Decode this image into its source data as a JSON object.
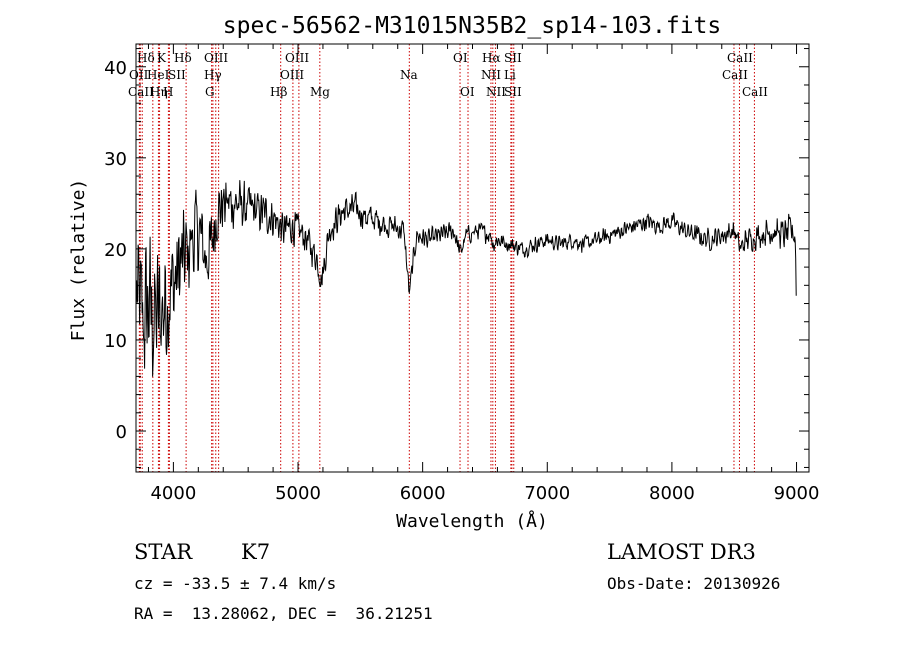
{
  "chart_data": {
    "type": "line",
    "title": "spec-56562-M31015N35B2_sp14-103.fits",
    "xlabel": "Wavelength (Å)",
    "ylabel": "Flux (relative)",
    "xlim": [
      3700,
      9100
    ],
    "ylim": [
      -4.5,
      42.5
    ],
    "xticks": [
      4000,
      5000,
      6000,
      7000,
      8000,
      9000
    ],
    "yticks": [
      0,
      10,
      20,
      30,
      40
    ],
    "grid": false,
    "line_color": "#000000",
    "marker_color": "#cc0000",
    "spectrum_anchors": {
      "x": [
        3705,
        3760,
        3800,
        3850,
        3900,
        3950,
        4000,
        4050,
        4100,
        4150,
        4200,
        4260,
        4300,
        4350,
        4400,
        4500,
        4600,
        4700,
        4800,
        4880,
        4950,
        5050,
        5150,
        5190,
        5250,
        5350,
        5450,
        5550,
        5650,
        5750,
        5850,
        5893,
        5950,
        6050,
        6150,
        6250,
        6300,
        6350,
        6450,
        6550,
        6563,
        6600,
        6700,
        6800,
        6900,
        7000,
        7100,
        7200,
        7300,
        7400,
        7500,
        7600,
        7700,
        7800,
        7900,
        8000,
        8100,
        8200,
        8300,
        8400,
        8500,
        8550,
        8600,
        8700,
        8800,
        8900,
        8960,
        8990,
        9000
      ],
      "y": [
        15,
        12,
        14,
        12,
        13,
        15,
        16,
        18,
        19,
        21,
        22,
        19,
        20,
        24,
        25,
        25,
        24.5,
        24,
        23.5,
        22,
        22.5,
        21.5,
        19,
        16.5,
        22,
        24,
        24.5,
        23.5,
        23,
        22.5,
        22,
        15,
        21.5,
        21,
        21.5,
        22,
        19.5,
        21.5,
        22,
        21.5,
        20.5,
        21,
        20.5,
        20,
        20.5,
        21,
        20.5,
        21,
        20.5,
        21,
        21.5,
        22,
        22.5,
        23,
        22.5,
        23,
        22,
        21.5,
        21,
        21.5,
        22,
        20,
        21,
        21.5,
        22,
        21.5,
        22,
        21.5,
        13
      ],
      "noise": [
        9,
        10,
        10,
        10,
        10,
        9,
        8,
        7,
        7,
        6,
        6,
        5,
        5,
        4,
        4,
        3.2,
        3,
        2.8,
        2.6,
        2.4,
        2.4,
        2.2,
        2,
        2,
        2,
        2,
        2,
        1.9,
        1.8,
        1.8,
        1.6,
        1.5,
        1.5,
        1.4,
        1.4,
        1.3,
        1.3,
        1.2,
        1.2,
        1.2,
        1.2,
        1.2,
        1.1,
        1.1,
        1.1,
        1.1,
        1.1,
        1.1,
        1.1,
        1.1,
        1.1,
        1.1,
        1.2,
        1.2,
        1.2,
        1.2,
        1.3,
        1.3,
        1.4,
        1.4,
        1.5,
        1.5,
        1.6,
        1.7,
        1.8,
        2,
        2.2,
        2.4,
        2.5
      ],
      "step": 4
    },
    "line_markers": [
      {
        "label": "Hδ",
        "x": 3750
      },
      {
        "label": "OII",
        "x": 3727
      },
      {
        "label": "CaII",
        "x": 3734
      },
      {
        "label": "K",
        "x": 3880
      },
      {
        "label": "HeI",
        "x": 3889
      },
      {
        "label": "Hη",
        "x": 3835
      },
      {
        "label": "SII",
        "x": 3960
      },
      {
        "label": "H",
        "x": 3968
      },
      {
        "label": "Hδ",
        "x": 4102
      },
      {
        "label": "OIII",
        "x": 4317
      },
      {
        "label": "Hγ",
        "x": 4340
      },
      {
        "label": "G",
        "x": 4307
      },
      {
        "label": "OIII",
        "x": 4363
      },
      {
        "label": "Hβ",
        "x": 4861
      },
      {
        "label": "OIII",
        "x": 4959
      },
      {
        "label": "OIII",
        "x": 5007
      },
      {
        "label": "Mg",
        "x": 5175
      },
      {
        "label": "Na",
        "x": 5893
      },
      {
        "label": "OI",
        "x": 6300
      },
      {
        "label": "OI",
        "x": 6364
      },
      {
        "label": "Hα",
        "x": 6563
      },
      {
        "label": "NII",
        "x": 6548
      },
      {
        "label": "NII",
        "x": 6584
      },
      {
        "label": "SII",
        "x": 6716
      },
      {
        "label": "Li",
        "x": 6708
      },
      {
        "label": "SII",
        "x": 6731
      },
      {
        "label": "CaII",
        "x": 8498
      },
      {
        "label": "CaII",
        "x": 8542
      },
      {
        "label": "CaII",
        "x": 8662
      }
    ]
  },
  "marker_labels": {
    "row1": {
      "hd": "Hδ",
      "k": "K",
      "hd2": "Hδ",
      "oiii": "OIII",
      "oiii2": "OIII",
      "oi": "OI",
      "ha": "Hα",
      "sii": "SII",
      "caii": "CaII"
    },
    "row2": {
      "oii": "OII",
      "hei": "HeI",
      "sii": "SII",
      "hg": "Hγ",
      "oiii": "OIII",
      "na": "Na",
      "nii": "NII",
      "li": "Li",
      "caii": "CaII"
    },
    "row3": {
      "caii": "CaII",
      "heta": "Hη",
      "h": "H",
      "g": "G",
      "hb": "Hβ",
      "mg": "Mg",
      "oi": "OI",
      "nii": "NII",
      "sii": "SII",
      "caii2": "CaII"
    }
  },
  "info": {
    "class": "STAR",
    "subclass": "K7",
    "survey": "LAMOST DR3",
    "cz": "cz = -33.5 ± 7.4 km/s",
    "obs_date": "Obs-Date: 20130926",
    "coords": "RA =  13.28062, DEC =  36.21251"
  }
}
